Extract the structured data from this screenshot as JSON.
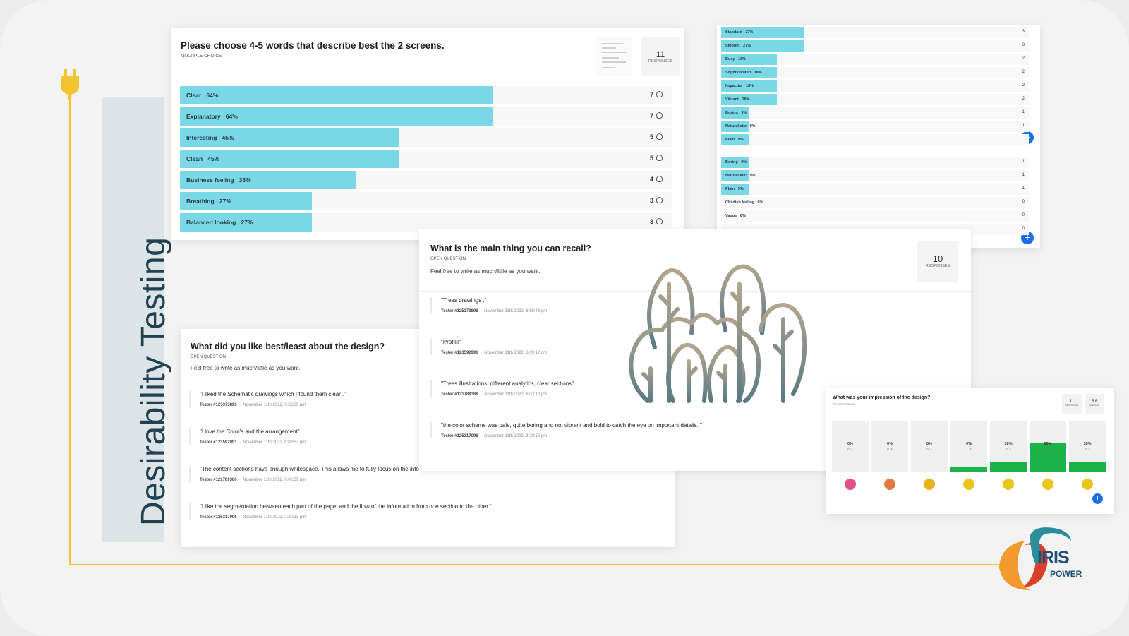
{
  "side_title": "Desirability Testing",
  "brand": {
    "name": "IRIS",
    "sub": "POWER",
    "colors": {
      "orange": "#f29a2e",
      "red": "#d8402a",
      "teal": "#2a8f9a",
      "navy": "#1f4f78"
    }
  },
  "accent": {
    "bar_fill": "#7ad7e6",
    "plus_button": "#1a6fe8",
    "scale_fill": "#1bb24a",
    "plug": "#f3c431"
  },
  "choice_card": {
    "title": "Please choose 4-5 words that describe best the 2 screens.",
    "type": "MULTIPLE CHOICE",
    "responses": "11",
    "responses_label": "RESPONSES",
    "rows": [
      {
        "label": "Clear",
        "pct": "64%",
        "value": 64,
        "count": "7"
      },
      {
        "label": "Explanatory",
        "pct": "64%",
        "value": 64,
        "count": "7"
      },
      {
        "label": "Interesting",
        "pct": "45%",
        "value": 45,
        "count": "5"
      },
      {
        "label": "Clean",
        "pct": "45%",
        "value": 45,
        "count": "5"
      },
      {
        "label": "Business feeling",
        "pct": "36%",
        "value": 36,
        "count": "4"
      },
      {
        "label": "Breathing",
        "pct": "27%",
        "value": 27,
        "count": "3"
      },
      {
        "label": "Balanced looking",
        "pct": "27%",
        "value": 27,
        "count": "3"
      }
    ]
  },
  "choice_card_2": {
    "rows_a": [
      {
        "label": "Standard",
        "pct": "27%",
        "value": 27,
        "count": "3"
      },
      {
        "label": "Smooth",
        "pct": "27%",
        "value": 27,
        "count": "3"
      },
      {
        "label": "Busy",
        "pct": "18%",
        "value": 18,
        "count": "2"
      },
      {
        "label": "Sophisticated",
        "pct": "18%",
        "value": 18,
        "count": "2"
      },
      {
        "label": "Impactful",
        "pct": "18%",
        "value": 18,
        "count": "2"
      },
      {
        "label": "Vibrant",
        "pct": "18%",
        "value": 18,
        "count": "2"
      },
      {
        "label": "Boring",
        "pct": "9%",
        "value": 9,
        "count": "1"
      },
      {
        "label": "Naturalistic",
        "pct": "9%",
        "value": 9,
        "count": "1"
      },
      {
        "label": "Plain",
        "pct": "9%",
        "value": 9,
        "count": ""
      }
    ],
    "rows_b": [
      {
        "label": "Boring",
        "pct": "9%",
        "value": 9,
        "count": "1"
      },
      {
        "label": "Naturalistic",
        "pct": "9%",
        "value": 9,
        "count": "1"
      },
      {
        "label": "Plain",
        "pct": "9%",
        "value": 9,
        "count": "1"
      },
      {
        "label": "Childish feeling",
        "pct": "0%",
        "value": 0,
        "count": "0"
      },
      {
        "label": "Vague",
        "pct": "0%",
        "value": 0,
        "count": "0"
      },
      {
        "label": "",
        "pct": "",
        "value": 0,
        "count": "0"
      }
    ]
  },
  "like_card": {
    "title": "What did you like best/least about the design?",
    "type": "OPEN QUESTION",
    "desc": "Feel free to write as much/little as you want.",
    "answers": [
      {
        "text": "\"I liked the Schematic drawings which I found them clear .\"",
        "tester": "Tester #125373896",
        "date": "November 11th 2022, 6:58:39 pm"
      },
      {
        "text": "\"I love the Color's and the arrangement\"",
        "tester": "Tester #123592991",
        "date": "November 11th 2022, 6:08:57 pm"
      },
      {
        "text": "\"The content sections have enough whitespace. This allows me to fully focus on the information.\"",
        "tester": "Tester #121789386",
        "date": "November 11th 2022, 6:02:39 pm"
      },
      {
        "text": "\"I like the segmentation between each part of the page, and the flow of the information from one section to the other.\"",
        "tester": "Tester #125317096",
        "date": "November 11th 2022, 3:20:33 pm"
      }
    ]
  },
  "recall_card": {
    "title": "What is the main thing you can recall?",
    "type": "OPEN QUESTION",
    "desc": "Feel free to write as much/little as you want.",
    "responses": "10",
    "responses_label": "RESPONSES",
    "answers": [
      {
        "text": "\"Trees drawings .\"",
        "tester": "Tester #125373896",
        "date": "November 11th 2022, 6:59:43 pm"
      },
      {
        "text": "\"Profile\"",
        "tester": "Tester #123592991",
        "date": "November 11th 2022, 6:09:17 pm"
      },
      {
        "text": "\"Trees illustrations, different analytics, clear sections\"",
        "tester": "Tester #121789386",
        "date": "November 11th 2022, 6:03:10 pm"
      },
      {
        "text": "\"the color scheme was pale, quite boring and not vibrant and bold to catch the eye on important details. \"",
        "tester": "Tester #125317096",
        "date": "November 11th 2022, 3:20:50 pm"
      }
    ]
  },
  "scale_card": {
    "title": "What was your impression of the design?",
    "type": "OPINION SCALE",
    "responses": "11",
    "responses_label": "RESPONSES",
    "average": "5.8",
    "average_label": "AVERAGE",
    "columns": [
      {
        "pct": "0%",
        "num": "0 ↗",
        "value": 0,
        "color": "#e0528a"
      },
      {
        "pct": "0%",
        "num": "0 ↗",
        "value": 0,
        "color": "#e07a45"
      },
      {
        "pct": "0%",
        "num": "0 ↗",
        "value": 0,
        "color": "#e8b218"
      },
      {
        "pct": "9%",
        "num": "1 ↗",
        "value": 9,
        "color": "#e8c61c"
      },
      {
        "pct": "18%",
        "num": "2 ↗",
        "value": 18,
        "color": "#e8c61c"
      },
      {
        "pct": "55%",
        "num": "6 ↗",
        "value": 55,
        "color": "#e8c61c"
      },
      {
        "pct": "18%",
        "num": "2 ↗",
        "value": 18,
        "color": "#e8c61c"
      }
    ]
  }
}
